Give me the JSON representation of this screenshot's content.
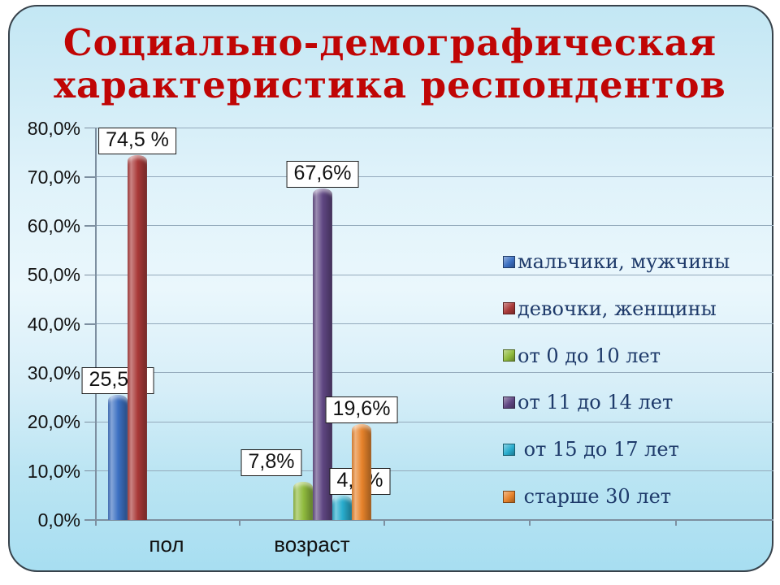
{
  "slide": {
    "title_line1": "Социально-демографическая",
    "title_line2": "характеристика респондентов",
    "title_color": "#c00505"
  },
  "chart_data": {
    "type": "bar",
    "title": "Социально-демографическая характеристика респондентов",
    "categories": [
      "пол",
      "возраст"
    ],
    "series": [
      {
        "name": "мальчики, мужчины",
        "category": "пол",
        "value": 25.5,
        "label": "25,5%",
        "color": "#3c70c2"
      },
      {
        "name": "девочки, женщины",
        "category": "пол",
        "value": 74.5,
        "label": "74,5 %",
        "color": "#a93938"
      },
      {
        "name": "от 0 до 10 лет",
        "category": "возраст",
        "value": 7.8,
        "label": "7,8%",
        "color": "#90bb3e"
      },
      {
        "name": "от 11 до 14 лет",
        "category": "возраст",
        "value": 67.6,
        "label": "67,6%",
        "color": "#5f4682"
      },
      {
        "name": " от 15 до 17 лет",
        "category": "возраст",
        "value": 4.9,
        "label": "4,9%",
        "color": "#29adce"
      },
      {
        "name": " старше 30 лет",
        "category": "возраст",
        "value": 19.6,
        "label": "19,6%",
        "color": "#e7832b"
      }
    ],
    "y_axis": {
      "min": 0,
      "max": 80,
      "step": 10,
      "tick_labels": [
        "80,0%",
        "70,0%",
        "60,0%",
        "50,0%",
        "40,0%",
        "30,0%",
        "20,0%",
        "10,0%",
        "0,0%"
      ]
    },
    "grid": true,
    "legend_position": "right",
    "data_labels_visible": true
  }
}
